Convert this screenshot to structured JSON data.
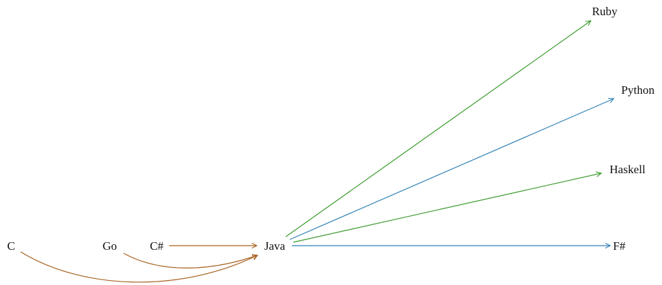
{
  "nodes": {
    "c": "C",
    "go": "Go",
    "csharp": "C#",
    "java": "Java",
    "ruby": "Ruby",
    "python": "Python",
    "haskell": "Haskell",
    "fsharp": "F#"
  },
  "edges": [
    {
      "from": "C",
      "to": "Java",
      "color": "#a65f1c"
    },
    {
      "from": "Go",
      "to": "Java",
      "color": "#a65f1c"
    },
    {
      "from": "C#",
      "to": "Java",
      "color": "#a65f1c"
    },
    {
      "from": "Java",
      "to": "Ruby",
      "color": "#3a9a2c"
    },
    {
      "from": "Java",
      "to": "Python",
      "color": "#2e7fb5"
    },
    {
      "from": "Java",
      "to": "Haskell",
      "color": "#3a9a2c"
    },
    {
      "from": "Java",
      "to": "F#",
      "color": "#2e7fb5"
    }
  ],
  "colors": {
    "brown": "#a65f1c",
    "green": "#3a9a2c",
    "blue": "#2e7fb5"
  }
}
